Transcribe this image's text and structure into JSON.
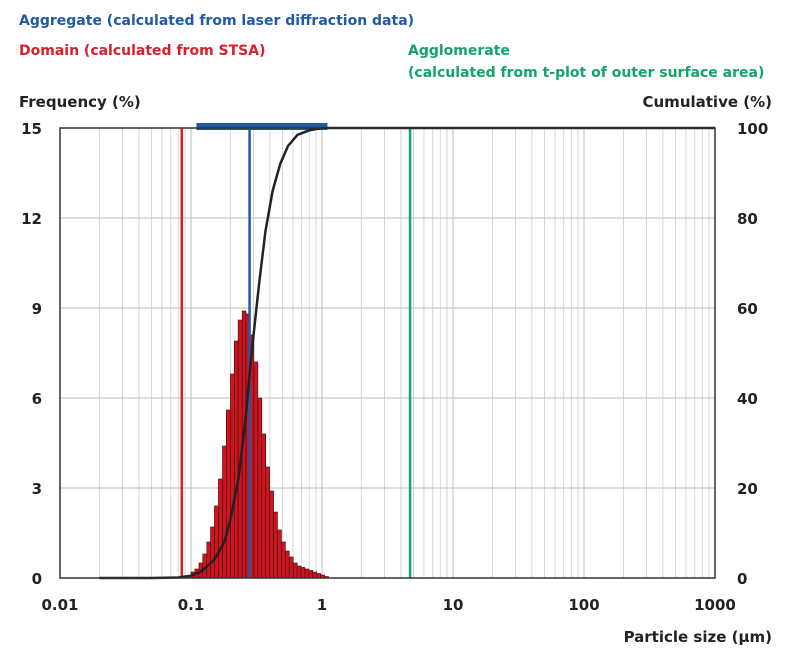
{
  "legend": {
    "aggregate": {
      "label": "Aggregate (calculated from laser diffraction data)",
      "color": "#1f5aa6"
    },
    "domain": {
      "label": "Domain (calculated from STSA)",
      "color": "#d7202a"
    },
    "agglomerate": {
      "label": "Agglomerate",
      "sublabel": "(calculated from t-plot of outer surface area)",
      "color": "#13a36b"
    }
  },
  "chart_data": {
    "type": "bar",
    "xscale": "log",
    "xlim": [
      0.01,
      1000
    ],
    "ylim_left": [
      0,
      15
    ],
    "ylim_right": [
      0,
      100
    ],
    "xlabel": "Particle size (μm)",
    "ylabel_left": "Frequency (%)",
    "ylabel_right": "Cumulative (%)",
    "xticks": [
      "0.01",
      "0.1",
      "1",
      "10",
      "100",
      "1000"
    ],
    "yticks_left": [
      "0",
      "3",
      "6",
      "9",
      "12",
      "15"
    ],
    "yticks_right": [
      "0",
      "20",
      "40",
      "60",
      "80",
      "100"
    ],
    "grid": true,
    "frequency": {
      "bin_edges": [
        0.1,
        0.107,
        0.115,
        0.123,
        0.132,
        0.141,
        0.151,
        0.162,
        0.174,
        0.186,
        0.2,
        0.214,
        0.229,
        0.246,
        0.263,
        0.282,
        0.302,
        0.324,
        0.347,
        0.372,
        0.398,
        0.427,
        0.457,
        0.49,
        0.525,
        0.562,
        0.603,
        0.646,
        0.692,
        0.741,
        0.794,
        0.851,
        0.912,
        0.977,
        1.047,
        1.122
      ],
      "values": [
        0.2,
        0.3,
        0.5,
        0.8,
        1.2,
        1.7,
        2.4,
        3.3,
        4.4,
        5.6,
        6.8,
        7.9,
        8.6,
        8.9,
        8.8,
        8.1,
        7.2,
        6.0,
        4.8,
        3.7,
        2.9,
        2.2,
        1.6,
        1.2,
        0.9,
        0.7,
        0.5,
        0.4,
        0.35,
        0.3,
        0.25,
        0.2,
        0.15,
        0.1,
        0.05
      ],
      "color": "#cc1520"
    },
    "cumulative": {
      "x": [
        0.02,
        0.05,
        0.08,
        0.1,
        0.12,
        0.15,
        0.18,
        0.2,
        0.23,
        0.26,
        0.29,
        0.33,
        0.37,
        0.42,
        0.48,
        0.55,
        0.65,
        0.8,
        1.0,
        1.5,
        3,
        10,
        100,
        1000
      ],
      "y": [
        0,
        0,
        0.1,
        0.5,
        1.5,
        4,
        8,
        13,
        22,
        35,
        50,
        65,
        77,
        86,
        92,
        96,
        98.5,
        99.5,
        100,
        100,
        100,
        100,
        100,
        100
      ],
      "color": "#222222"
    },
    "markers": {
      "domain": {
        "x": 0.085,
        "color": "#d7202a"
      },
      "agglomerate": {
        "x": 4.7,
        "color": "#13a36b"
      },
      "aggregate": {
        "x": 0.28,
        "range": [
          0.11,
          1.1
        ],
        "color": "#1f5aa6"
      }
    }
  }
}
